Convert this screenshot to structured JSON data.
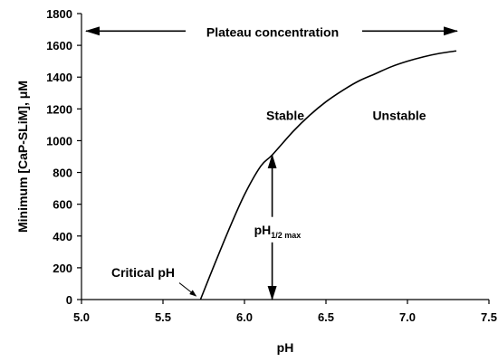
{
  "chart_data": {
    "type": "line",
    "xlabel": "pH",
    "ylabel": "Minimum [CaP-SLiM], μM",
    "xlim": [
      5.0,
      7.5
    ],
    "ylim": [
      0,
      1800
    ],
    "xticks": [
      "5.0",
      "5.5",
      "6.0",
      "6.5",
      "7.0",
      "7.5"
    ],
    "yticks": [
      "0",
      "200",
      "400",
      "600",
      "800",
      "1000",
      "1200",
      "1400",
      "1600",
      "1800"
    ],
    "grid": false,
    "series": [
      {
        "x": [
          5.73,
          5.8,
          5.9,
          6.0,
          6.1,
          6.17,
          6.3,
          6.4,
          6.5,
          6.6,
          6.7,
          6.8,
          6.9,
          7.0,
          7.1,
          7.2,
          7.3
        ],
        "y": [
          0,
          180,
          430,
          660,
          840,
          910,
          1060,
          1160,
          1245,
          1315,
          1375,
          1420,
          1465,
          1500,
          1528,
          1550,
          1565
        ]
      }
    ],
    "plateau_value": 1690,
    "half_max_ph": 6.17,
    "critical_ph": 5.73,
    "annotations": {
      "plateau": "Plateau concentration",
      "stable": "Stable",
      "unstable": "Unstable",
      "critical": "Critical pH",
      "half_max_main": "pH",
      "half_max_sub": "1/2 max"
    },
    "colors": {
      "line": "#000000",
      "axis": "#000000"
    }
  }
}
